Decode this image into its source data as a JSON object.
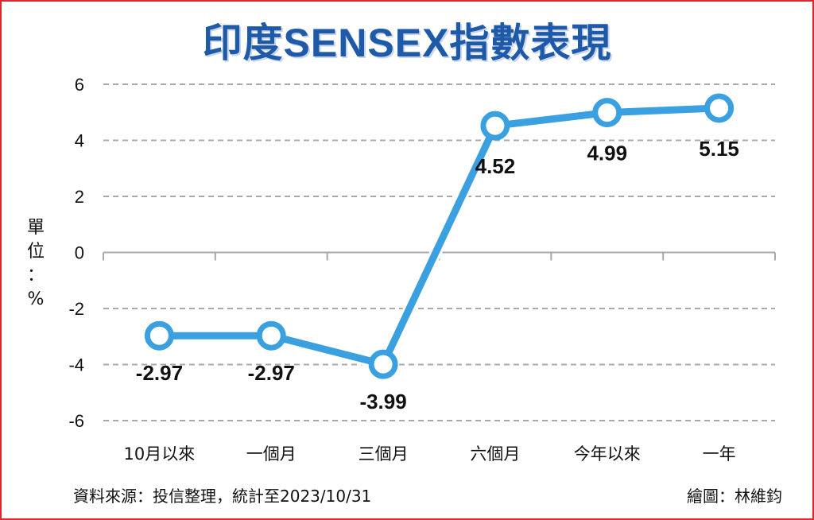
{
  "title": "印度SENSEX指數表現",
  "unit_label": [
    "單",
    "位",
    "：",
    "%"
  ],
  "source": "資料來源：投信整理，統計至2023/10/31",
  "credit": "繪圖：林維鈞",
  "colors": {
    "line": "#3aa0e0",
    "title": "#1f5aa8",
    "frame": "#e3262b",
    "grid": "#a9a9a9"
  },
  "chart_data": {
    "type": "line",
    "title": "印度SENSEX指數表現",
    "ylabel": "單位：%",
    "xlabel": "",
    "categories": [
      "10月以來",
      "一個月",
      "三個月",
      "六個月",
      "今年以來",
      "一年"
    ],
    "values": [
      -2.97,
      -2.97,
      -3.99,
      4.52,
      4.99,
      5.15
    ],
    "data_labels": [
      "-2.97",
      "-2.97",
      "-3.99",
      "4.52",
      "4.99",
      "5.15"
    ],
    "ylim": [
      -6,
      6
    ],
    "yticks": [
      "-6",
      "-4",
      "-2",
      "0",
      "2",
      "4",
      "6"
    ],
    "grid": true
  }
}
